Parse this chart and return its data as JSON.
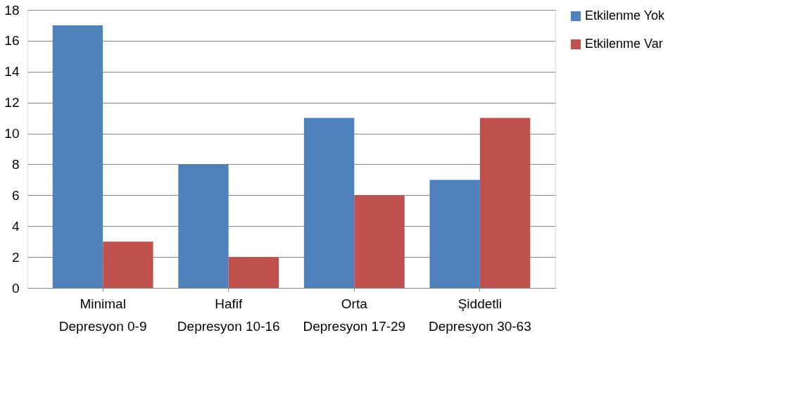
{
  "chart_data": {
    "type": "bar",
    "categories": [
      "Minimal Depresyon 0-9",
      "Hafif Depresyon 10-16",
      "Orta Depresyon 17-29",
      "Şiddetli Depresyon 30-63"
    ],
    "series": [
      {
        "name": "Etkilenme Yok",
        "color": "#4f81bd",
        "values": [
          17,
          8,
          11,
          7
        ]
      },
      {
        "name": "Etkilenme Var",
        "color": "#c0504d",
        "values": [
          3,
          2,
          6,
          11
        ]
      }
    ],
    "ylim": [
      0,
      18
    ],
    "yticks": [
      0,
      2,
      4,
      6,
      8,
      10,
      12,
      14,
      16,
      18
    ],
    "grid": "y",
    "legend": "right"
  }
}
